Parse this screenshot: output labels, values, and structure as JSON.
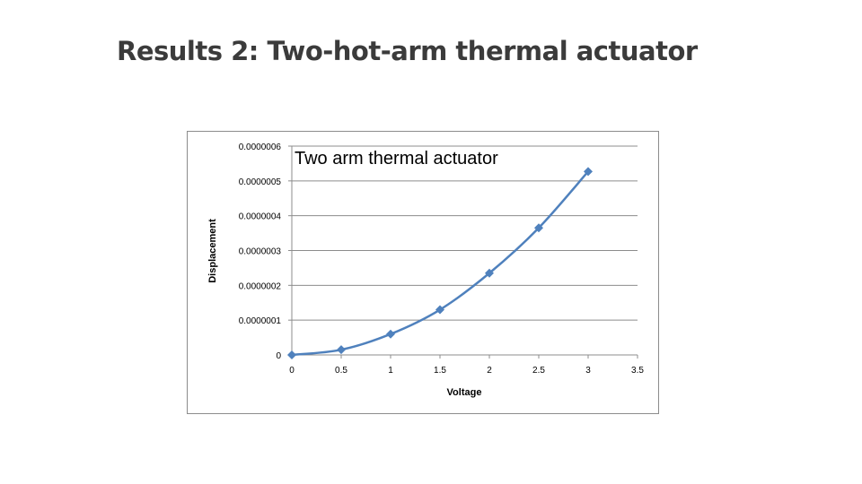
{
  "slide": {
    "title": "Results 2: Two-hot-arm thermal actuator"
  },
  "chart_data": {
    "type": "scatter",
    "title": "Two arm thermal actuator",
    "xlabel": "Voltage",
    "ylabel": "Displacement",
    "xlim": [
      0,
      3.5
    ],
    "ylim": [
      0,
      6e-07
    ],
    "xticks": [
      "0",
      "0.5",
      "1",
      "1.5",
      "2",
      "2.5",
      "3",
      "3.5"
    ],
    "yticks": [
      "0",
      "0.0000001",
      "0.0000002",
      "0.0000003",
      "0.0000004",
      "0.0000005",
      "0.0000006"
    ],
    "grid": "horizontal",
    "series": [
      {
        "x": [
          0,
          0.5,
          1,
          1.5,
          2,
          2.5,
          3
        ],
        "values": [
          0,
          1.5e-08,
          6e-08,
          1.3e-07,
          2.35e-07,
          3.65e-07,
          5.27e-07
        ],
        "color": "#4f81bd",
        "marker": "diamond",
        "line": "smooth"
      }
    ]
  }
}
